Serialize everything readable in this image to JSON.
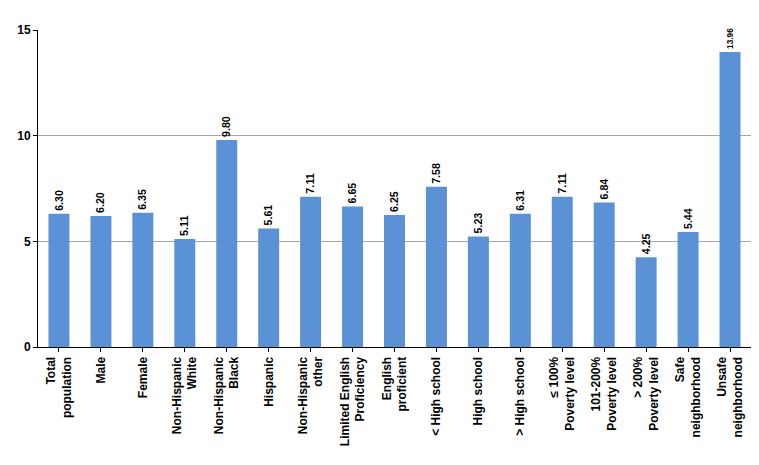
{
  "chart_data": {
    "type": "bar",
    "categories": [
      "Total\npopulation",
      "Male",
      "Female",
      "Non-Hispanic\nWhite",
      "Non-Hispanic\nBlack",
      "Hispanic",
      "Non-Hispanic\nother",
      "Limited English\nProficiency",
      "English\nproficient",
      "< High school",
      "High school",
      "> High school",
      "≤ 100%\nPoverty level",
      "101-200%\nPoverty level",
      "> 200%\nPoverty level",
      "Safe\nneighborhood",
      "Unsafe\nneighborhood"
    ],
    "values": [
      6.3,
      6.2,
      6.35,
      5.11,
      9.8,
      5.61,
      7.11,
      6.65,
      6.25,
      7.58,
      5.23,
      6.31,
      7.11,
      6.84,
      4.25,
      5.44,
      13.96
    ],
    "value_labels": [
      "6.30",
      "6.20",
      "6.35",
      "5.11",
      "9.80",
      "5.61",
      "7.11",
      "6.65",
      "6.25",
      "7.58",
      "5.23",
      "6.31",
      "7.11",
      "6.84",
      "4.25",
      "5.44",
      "13.96"
    ],
    "color": "#5b92d6",
    "ylim": [
      0,
      15
    ],
    "yticks": [
      0,
      5,
      10,
      15
    ],
    "grid": true,
    "data_labels": true
  }
}
